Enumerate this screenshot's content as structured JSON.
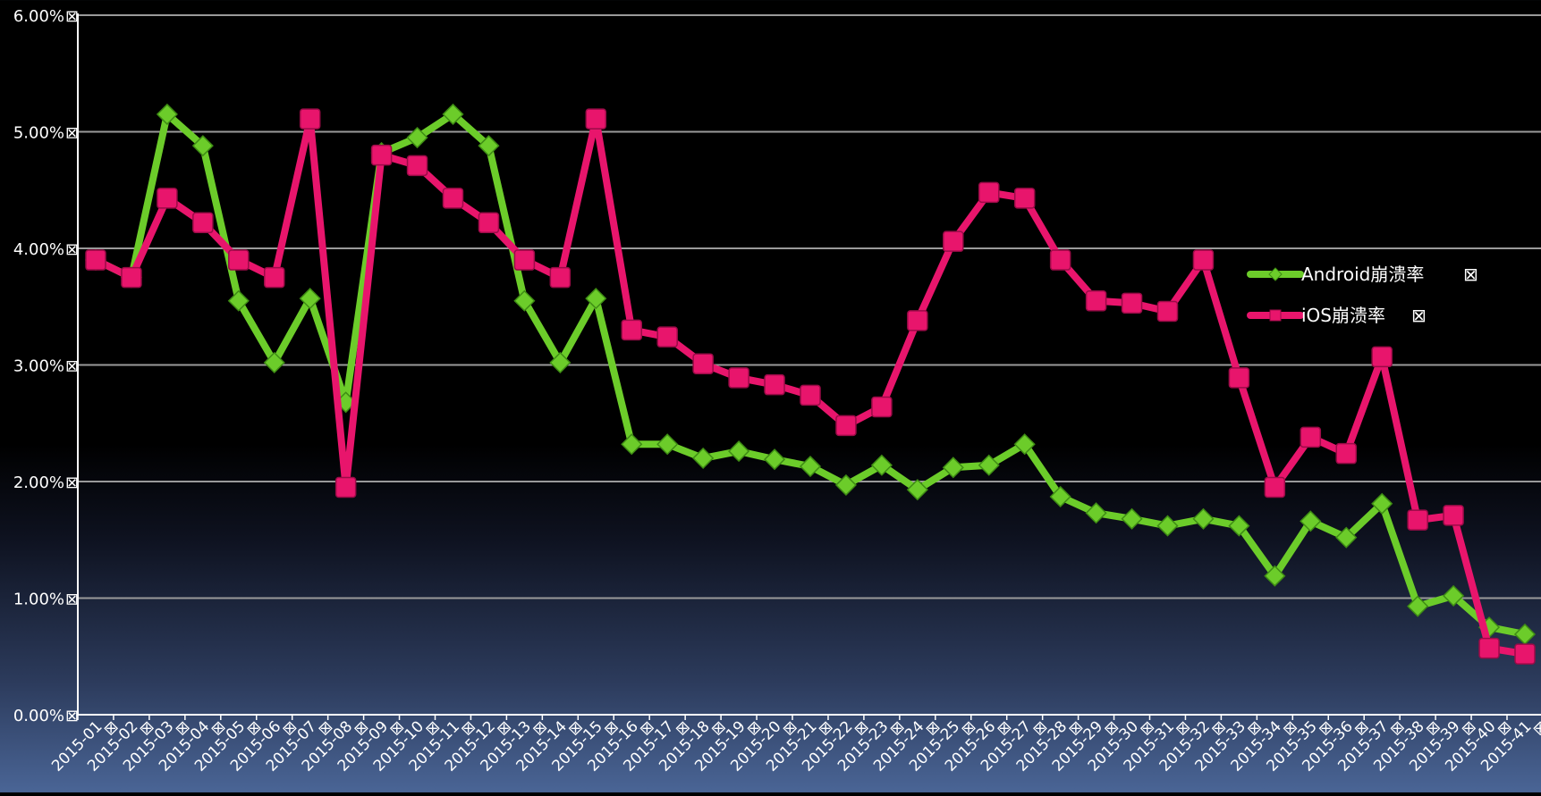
{
  "chart_data": {
    "type": "line",
    "title": "",
    "xlabel": "",
    "ylabel": "",
    "ylim": [
      0,
      6
    ],
    "y_ticks": [
      "0.00%",
      "1.00%",
      "2.00%",
      "3.00%",
      "4.00%",
      "5.00%",
      "6.00%"
    ],
    "tick_suffix_glyph": "⊠",
    "grid": true,
    "legend_position": "right",
    "categories": [
      "2015-01",
      "2015-02",
      "2015-03",
      "2015-04",
      "2015-05",
      "2015-06",
      "2015-07",
      "2015-08",
      "2015-09",
      "2015-10",
      "2015-11",
      "2015-12",
      "2015-13",
      "2015-14",
      "2015-15",
      "2015-16",
      "2015-17",
      "2015-18",
      "2015-19",
      "2015-20",
      "2015-21",
      "2015-22",
      "2015-23",
      "2015-24",
      "2015-25",
      "2015-26",
      "2015-27",
      "2015-28",
      "2015-29",
      "2015-30",
      "2015-31",
      "2015-32",
      "2015-33",
      "2015-34",
      "2015-35",
      "2015-36",
      "2015-37",
      "2015-38",
      "2015-39",
      "2015-40",
      "2015-41"
    ],
    "series": [
      {
        "name": "Android崩溃率",
        "color": "#6ccc2a",
        "marker": "diamond",
        "values": [
          3.9,
          3.75,
          5.15,
          4.88,
          3.55,
          3.02,
          3.57,
          2.68,
          4.82,
          4.95,
          5.15,
          4.88,
          3.55,
          3.02,
          3.57,
          2.32,
          2.32,
          2.2,
          2.26,
          2.19,
          2.13,
          1.97,
          2.14,
          1.93,
          2.12,
          2.14,
          2.32,
          1.87,
          1.73,
          1.68,
          1.62,
          1.68,
          1.62,
          1.19,
          1.66,
          1.52,
          1.81,
          0.93,
          1.02,
          0.75,
          0.69
        ]
      },
      {
        "name": "iOS崩溃率",
        "color": "#e8156c",
        "marker": "square",
        "values": [
          3.9,
          3.75,
          4.43,
          4.22,
          3.9,
          3.75,
          5.11,
          1.95,
          4.8,
          4.71,
          4.43,
          4.22,
          3.9,
          3.75,
          5.11,
          3.3,
          3.24,
          3.01,
          2.89,
          2.83,
          2.74,
          2.48,
          2.64,
          3.38,
          4.06,
          4.48,
          4.43,
          3.9,
          3.55,
          3.53,
          3.46,
          3.9,
          2.89,
          1.95,
          2.38,
          2.24,
          3.07,
          1.67,
          1.71,
          0.57,
          0.52
        ]
      }
    ]
  }
}
